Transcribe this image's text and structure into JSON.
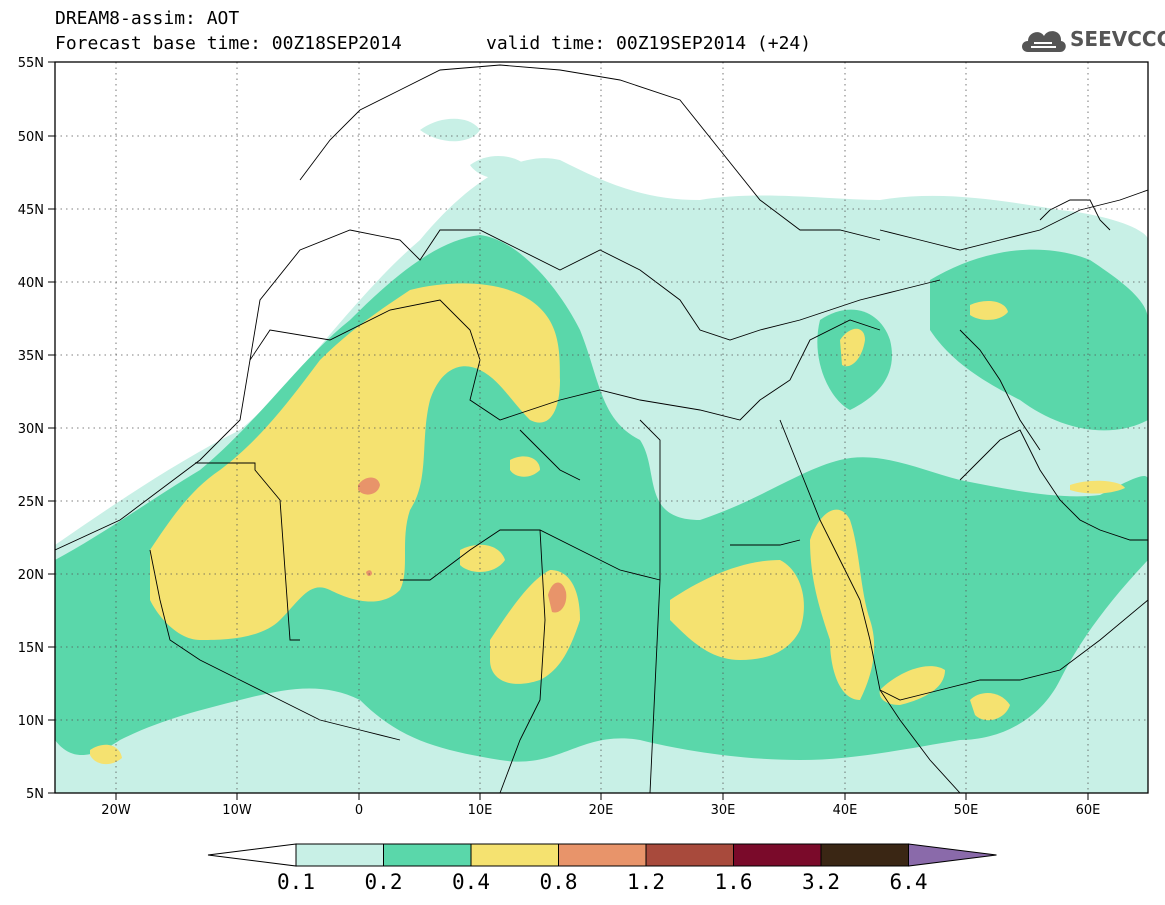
{
  "title": {
    "line1": "DREAM8-assim: AOT",
    "base_time": "Forecast base time: 00Z18SEP2014",
    "valid_time": "valid time: 00Z19SEP2014 (+24)"
  },
  "logo": {
    "text": "SEEVCCC",
    "icon": "cloud-icon"
  },
  "axes": {
    "lon_ticks": [
      "20W",
      "10W",
      "0",
      "10E",
      "20E",
      "30E",
      "40E",
      "50E",
      "60E"
    ],
    "lon_values": [
      -20,
      -10,
      0,
      10,
      20,
      30,
      40,
      50,
      60
    ],
    "lat_ticks": [
      "55N",
      "50N",
      "45N",
      "40N",
      "35N",
      "30N",
      "25N",
      "20N",
      "15N",
      "10N",
      "5N"
    ],
    "lat_values": [
      55,
      50,
      45,
      40,
      35,
      30,
      25,
      20,
      15,
      10,
      5
    ],
    "lon_range": [
      -25,
      65
    ],
    "lat_range": [
      5,
      55
    ],
    "grid": "dotted"
  },
  "colorbar": {
    "labels": [
      "0.1",
      "0.2",
      "0.4",
      "0.8",
      "1.2",
      "1.6",
      "3.2",
      "6.4"
    ],
    "colors": [
      "#c8f0e6",
      "#5ad7aa",
      "#f5e270",
      "#e8946a",
      "#a84a3c",
      "#7a0a2a",
      "#3a2614",
      "#8a6aaa"
    ],
    "under_color": "#ffffff"
  }
}
